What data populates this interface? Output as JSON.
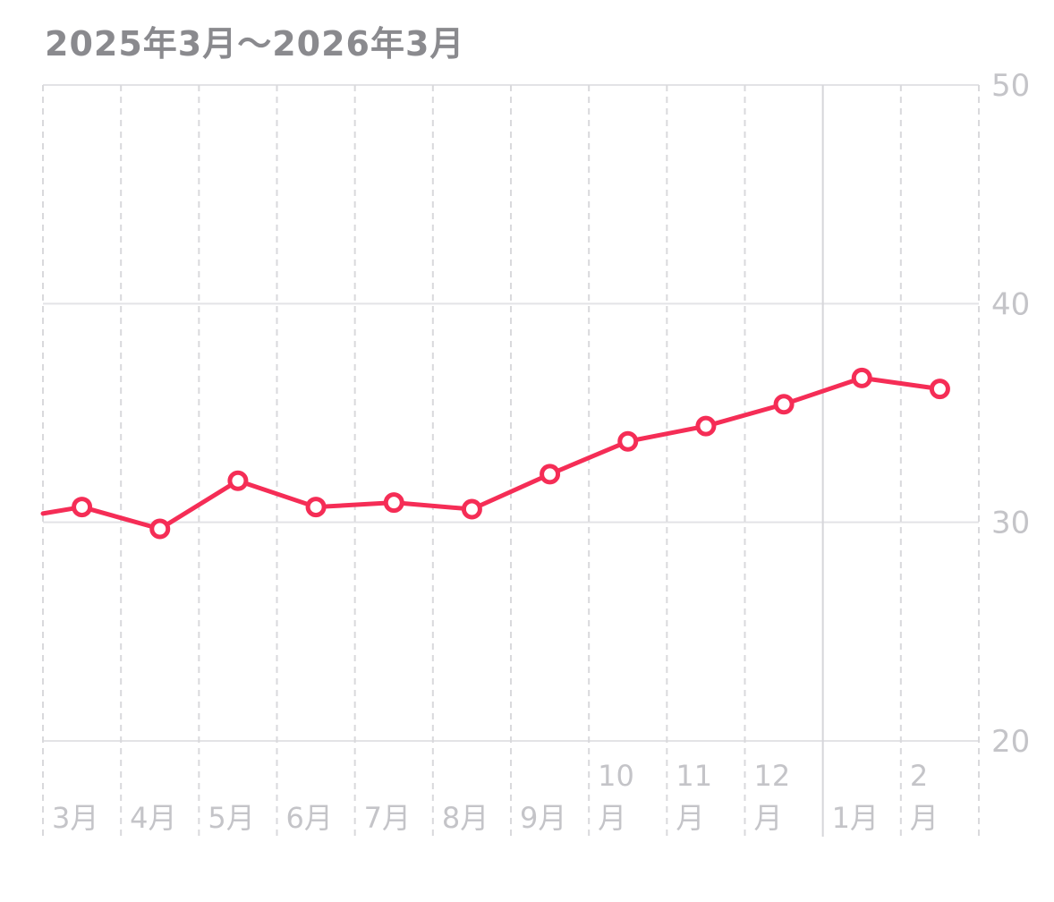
{
  "chart_data": {
    "type": "line",
    "title": "2025年3月〜2026年3月",
    "categories": [
      {
        "line1": "",
        "line2": "3月"
      },
      {
        "line1": "",
        "line2": "4月"
      },
      {
        "line1": "",
        "line2": "5月"
      },
      {
        "line1": "",
        "line2": "6月"
      },
      {
        "line1": "",
        "line2": "7月"
      },
      {
        "line1": "",
        "line2": "8月"
      },
      {
        "line1": "",
        "line2": "9月"
      },
      {
        "line1": "10",
        "line2": "月"
      },
      {
        "line1": "11",
        "line2": "月"
      },
      {
        "line1": "12",
        "line2": "月"
      },
      {
        "line1": "",
        "line2": "1月"
      },
      {
        "line1": "2",
        "line2": "月"
      }
    ],
    "series": [
      {
        "values": [
          30.7,
          29.7,
          31.9,
          30.7,
          30.9,
          30.6,
          32.2,
          33.7,
          34.4,
          35.4,
          36.6,
          36.1
        ]
      }
    ],
    "line_start_value": 30.4,
    "ylim": [
      20,
      50
    ],
    "yticks": [
      "20",
      "30",
      "40",
      "50"
    ],
    "line_color": "#f52d56",
    "grid": true
  }
}
